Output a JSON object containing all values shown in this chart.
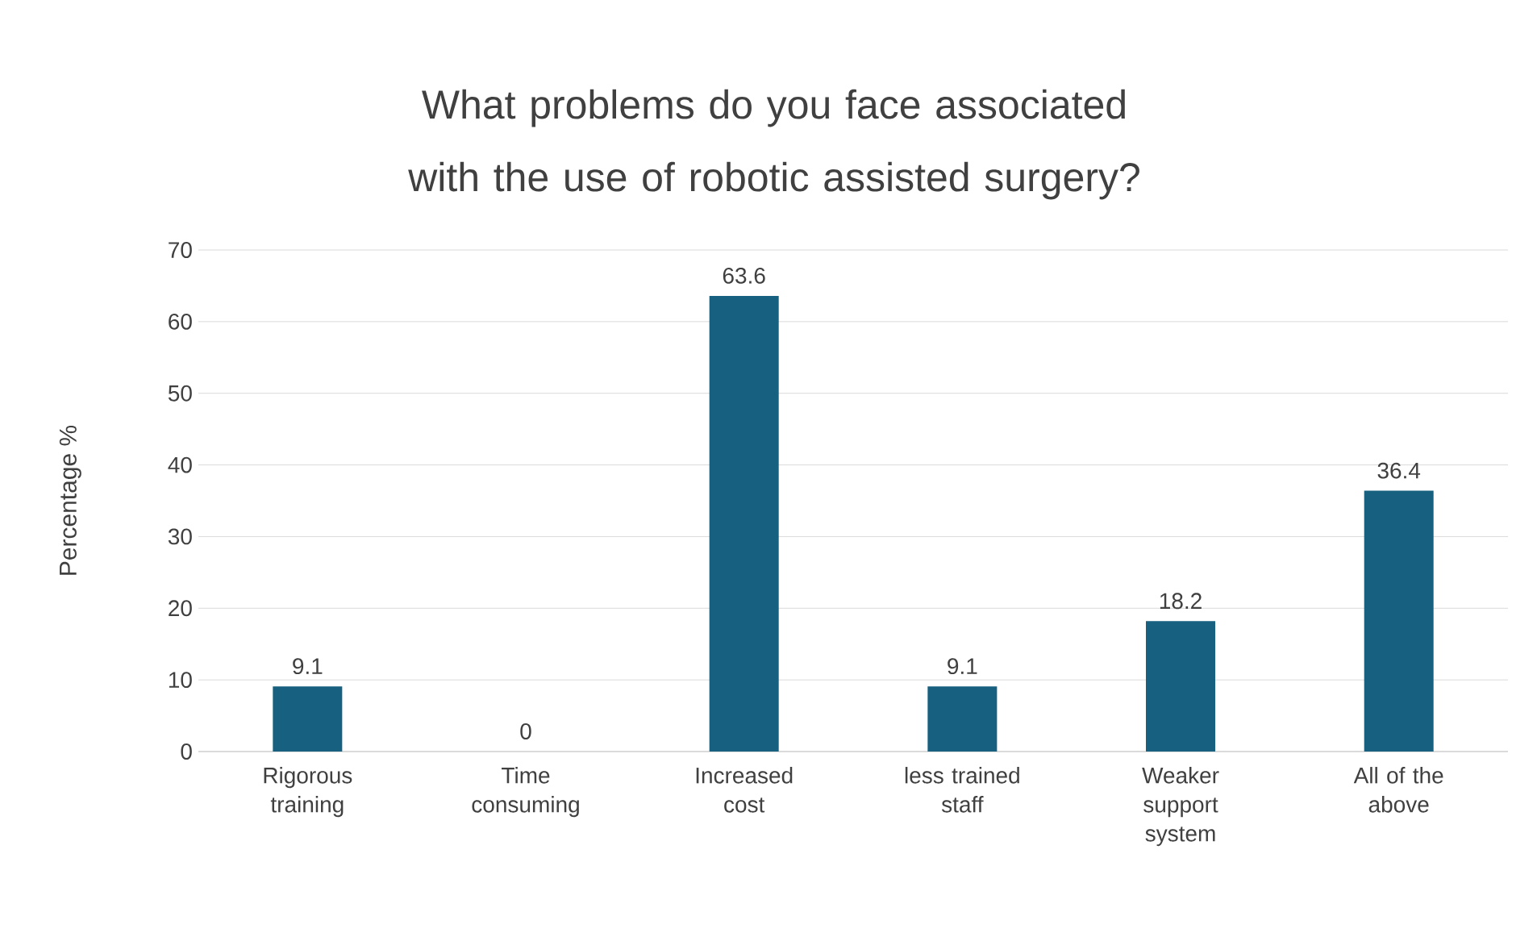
{
  "chart_data": {
    "type": "bar",
    "title": "What problems do you face associated with the use of robotic assisted surgery?",
    "ylabel": "Percentage %",
    "categories": [
      "Rigorous training",
      "Time consuming",
      "Increased cost",
      "less trained staff",
      "Weaker support system",
      "All of the above"
    ],
    "values": [
      9.1,
      0,
      63.6,
      9.1,
      18.2,
      36.4
    ],
    "color": "#17607f",
    "ylim": [
      0,
      70
    ],
    "yticks": [
      0,
      10,
      20,
      30,
      40,
      50,
      60,
      70
    ],
    "grid": "y",
    "data_labels": true
  }
}
